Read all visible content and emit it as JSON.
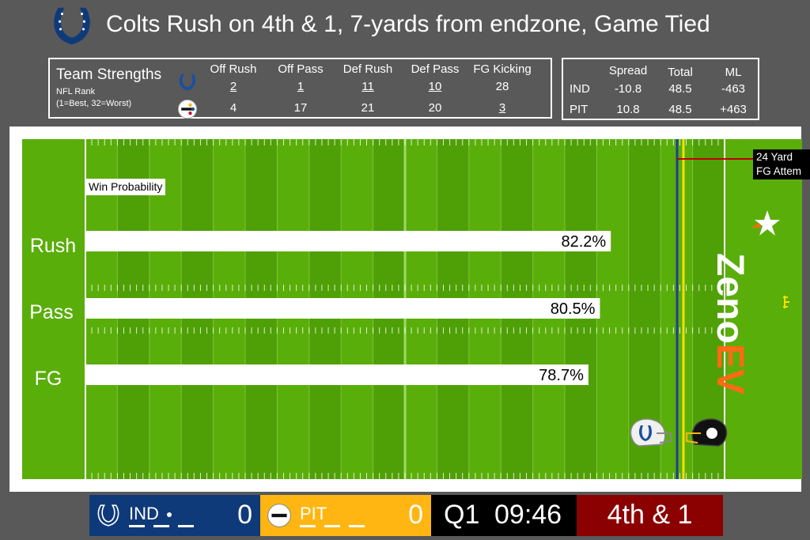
{
  "header": {
    "title": "Colts Rush on 4th & 1, 7-yards from endzone, Game Tied"
  },
  "strengths": {
    "title": "Team Strengths",
    "subtitle1": "NFL Rank",
    "subtitle2": "(1=Best, 32=Worst)",
    "columns": [
      "Off Rush",
      "Off Pass",
      "Def Rush",
      "Def Pass",
      "FG Kicking"
    ],
    "rows": [
      {
        "team": "IND",
        "values": [
          "2",
          "1",
          "11",
          "10",
          "28"
        ],
        "underline": [
          true,
          true,
          true,
          true,
          false
        ]
      },
      {
        "team": "PIT",
        "values": [
          "4",
          "17",
          "21",
          "20",
          "3"
        ],
        "underline": [
          false,
          false,
          false,
          false,
          true
        ]
      }
    ]
  },
  "odds": {
    "columns": [
      "Spread",
      "Total",
      "ML"
    ],
    "rows": [
      {
        "team": "IND",
        "values": [
          "-10.8",
          "48.5",
          "-463"
        ]
      },
      {
        "team": "PIT",
        "values": [
          "10.8",
          "48.5",
          "+463"
        ]
      }
    ]
  },
  "field": {
    "win_prob_label": "Win Probability",
    "fg_note_line1": "24 Yard",
    "fg_note_line2": "FG Attem",
    "brand_part1": "Zeno",
    "brand_part2": "EV"
  },
  "chart_data": {
    "type": "bar",
    "orientation": "horizontal",
    "title": "Win Probability",
    "categories": [
      "Rush",
      "Pass",
      "FG"
    ],
    "values": [
      82.2,
      80.5,
      78.7
    ],
    "value_labels": [
      "82.2%",
      "80.5%",
      "78.7%"
    ],
    "xlim": [
      0,
      100
    ]
  },
  "scoreboard": {
    "home_abbr": "IND",
    "home_score": "0",
    "away_abbr": "PIT",
    "away_score": "0",
    "quarter": "Q1",
    "clock": "09:46",
    "down_distance": "4th & 1"
  },
  "colors": {
    "field": "#5aae0a",
    "field_alt": "#4fa006",
    "colts": "#0f3a7a",
    "steelers": "#ffb612",
    "down_box": "#8b0000",
    "brand_orange": "#ff6a13"
  }
}
